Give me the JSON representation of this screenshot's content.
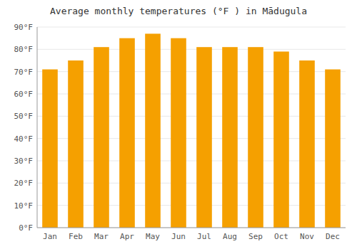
{
  "chart_data": {
    "type": "bar",
    "title": "Average monthly temperatures (°F ) in Mādugula",
    "categories": [
      "Jan",
      "Feb",
      "Mar",
      "Apr",
      "May",
      "Jun",
      "Jul",
      "Aug",
      "Sep",
      "Oct",
      "Nov",
      "Dec"
    ],
    "values": [
      71,
      75,
      81,
      85,
      87,
      85,
      81,
      81,
      81,
      79,
      75,
      71
    ],
    "color": "#F5A000",
    "ylim": [
      0,
      90
    ],
    "yticks": [
      {
        "value": 0,
        "label": "0°F"
      },
      {
        "value": 10,
        "label": "10°F"
      },
      {
        "value": 20,
        "label": "20°F"
      },
      {
        "value": 30,
        "label": "30°F"
      },
      {
        "value": 40,
        "label": "40°F"
      },
      {
        "value": 50,
        "label": "50°F"
      },
      {
        "value": 60,
        "label": "60°F"
      },
      {
        "value": 70,
        "label": "70°F"
      },
      {
        "value": 80,
        "label": "80°F"
      },
      {
        "value": 90,
        "label": "90°F"
      }
    ],
    "grid": true
  }
}
